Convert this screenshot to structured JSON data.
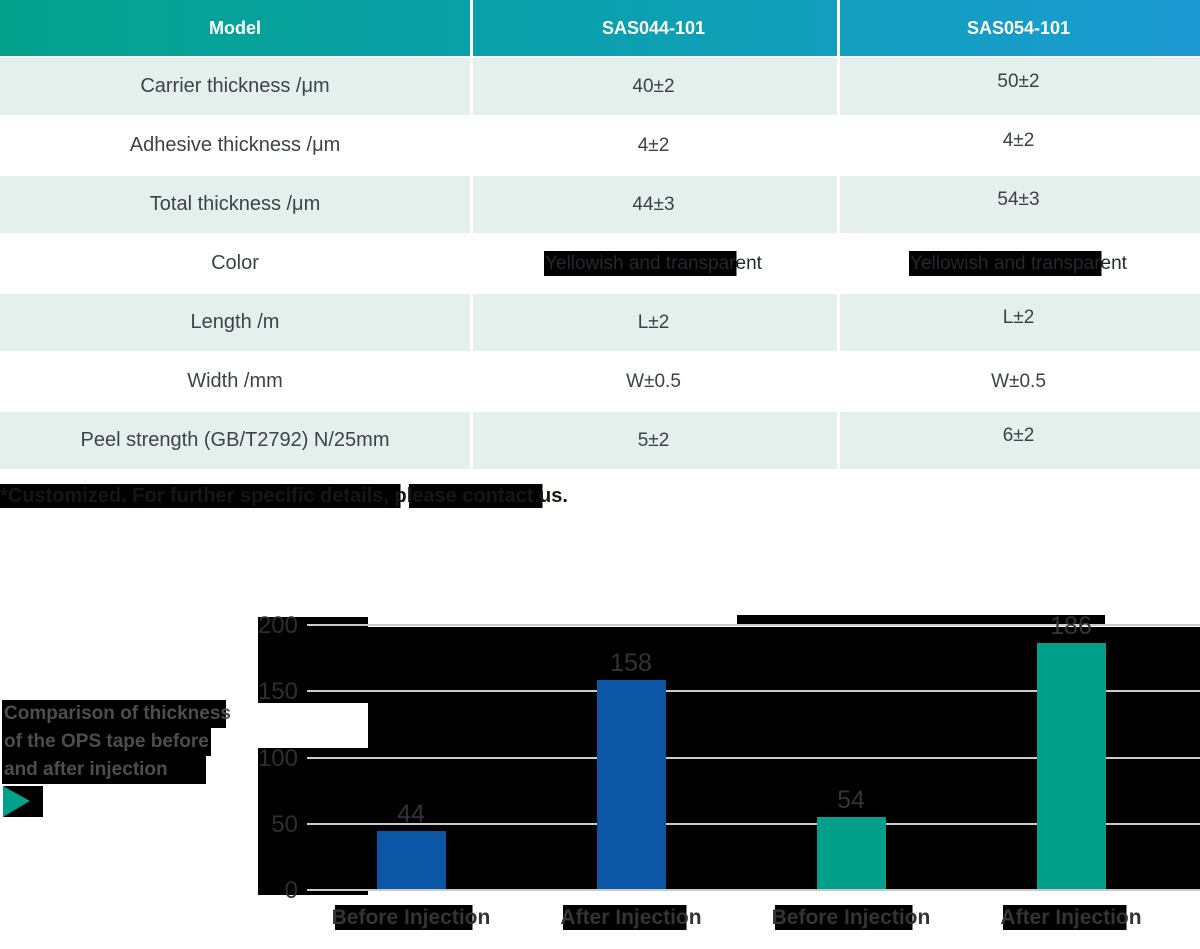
{
  "table": {
    "header": [
      "Model",
      "SAS044-101",
      "SAS054-101"
    ],
    "rows": [
      {
        "label": "Carrier thickness /μm",
        "v1": "40±2",
        "v2": "50±2"
      },
      {
        "label": "Adhesive thickness /μm",
        "v1": "4±2",
        "v2": "4±2"
      },
      {
        "label": "Total thickness /μm",
        "v1": "44±3",
        "v2": "54±3"
      },
      {
        "label": "Color",
        "v1": "Yellowish and transparent",
        "v2": "Yellowish and transparent"
      },
      {
        "label": "Length /m",
        "v1": "L±2",
        "v2": "L±2"
      },
      {
        "label": "Width /mm",
        "v1": "W±0.5",
        "v2": "W±0.5"
      },
      {
        "label": "Peel strength (GB/T2792) N/25mm",
        "v1": "5±2",
        "v2": "6±2"
      }
    ],
    "footnote": "*Customized. For further specific details, please contact us."
  },
  "chart": {
    "title_lines": [
      "Comparison of thickness",
      "of the OPS tape before",
      "and after injection"
    ],
    "arrow_icon": "right-triangle"
  },
  "chart_data": {
    "type": "bar",
    "title": "Comparison of thickness of the OPS tape before and after injection",
    "categories": [
      "Before Injection",
      "After Injection",
      "Before Injection",
      "After Injection"
    ],
    "values": [
      44,
      158,
      54,
      186
    ],
    "bar_colors": [
      "#0b57a5",
      "#0b57a5",
      "#02a08a",
      "#02a08a"
    ],
    "ylim": [
      0,
      200
    ],
    "yticks": [
      0,
      50,
      100,
      150,
      200
    ],
    "grid": true,
    "legend": "none",
    "xlabel": "",
    "ylabel": ""
  },
  "colors": {
    "header_gradient_left": "#04a28c",
    "header_gradient_right": "#1c9bd3",
    "row_light": "#e3f0ec",
    "bar_blue": "#0b57a5",
    "bar_teal": "#02a08a",
    "highlight_box": "#000000"
  }
}
